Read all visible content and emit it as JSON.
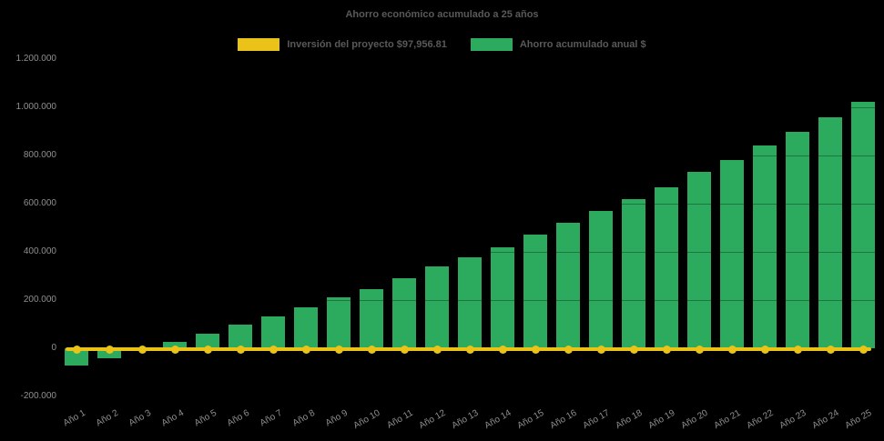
{
  "title": "Ahorro económico acumulado a 25 años",
  "legend": {
    "investment": {
      "label": "Inversión del proyecto $97,956.81",
      "color": "#EAC218"
    },
    "savings": {
      "label": "Ahorro acumulado anual $",
      "color": "#2CAB5E"
    }
  },
  "colors": {
    "background": "#000000",
    "bar_green": "#2CAB5E",
    "line_yellow": "#EAC218",
    "title_text": "#595959",
    "axis_text": "#8f8f8f"
  },
  "chart_data": {
    "type": "bar",
    "title": "Ahorro económico acumulado a 25 años",
    "xlabel": "",
    "ylabel": "",
    "ylim": [
      -200000,
      1200000
    ],
    "yticks": [
      1200000,
      1000000,
      800000,
      600000,
      400000,
      200000,
      0,
      -200000
    ],
    "ytick_labels": [
      "1.200.000",
      "1.000.000",
      "800.000",
      "600.000",
      "400.000",
      "200.000",
      "0",
      "-200.000"
    ],
    "grid": "horizontal-faint",
    "legend_position": "top",
    "categories": [
      "Año 1",
      "Año 2",
      "Año 3",
      "Año 4",
      "Año 5",
      "Año 6",
      "Año 7",
      "Año 8",
      "Año 9",
      "Año 10",
      "Año 11",
      "Año 12",
      "Año 13",
      "Año 14",
      "Año 15",
      "Año 16",
      "Año 17",
      "Año 18",
      "Año 19",
      "Año 20",
      "Año 21",
      "Año 22",
      "Año 23",
      "Año 24",
      "Año 25"
    ],
    "series": [
      {
        "name": "Ahorro acumulado anual $",
        "type": "bar",
        "color": "#2CAB5E",
        "values": [
          -70000,
          -40000,
          -5000,
          28000,
          60000,
          100000,
          133000,
          171000,
          210000,
          247000,
          289000,
          339000,
          379000,
          420000,
          472000,
          521000,
          571000,
          617000,
          668000,
          731000,
          780000,
          840000,
          897000,
          957000,
          1021000
        ]
      },
      {
        "name": "Inversión del proyecto $97,956.81",
        "type": "line",
        "color": "#EAC218",
        "marker": "circle",
        "values": [
          -5000,
          -5000,
          -5000,
          -5000,
          -5000,
          -5000,
          -5000,
          -5000,
          -5000,
          -5000,
          -5000,
          -5000,
          -5000,
          -5000,
          -5000,
          -5000,
          -5000,
          -5000,
          -5000,
          -5000,
          -5000,
          -5000,
          -5000,
          -5000,
          -5000
        ]
      }
    ]
  }
}
